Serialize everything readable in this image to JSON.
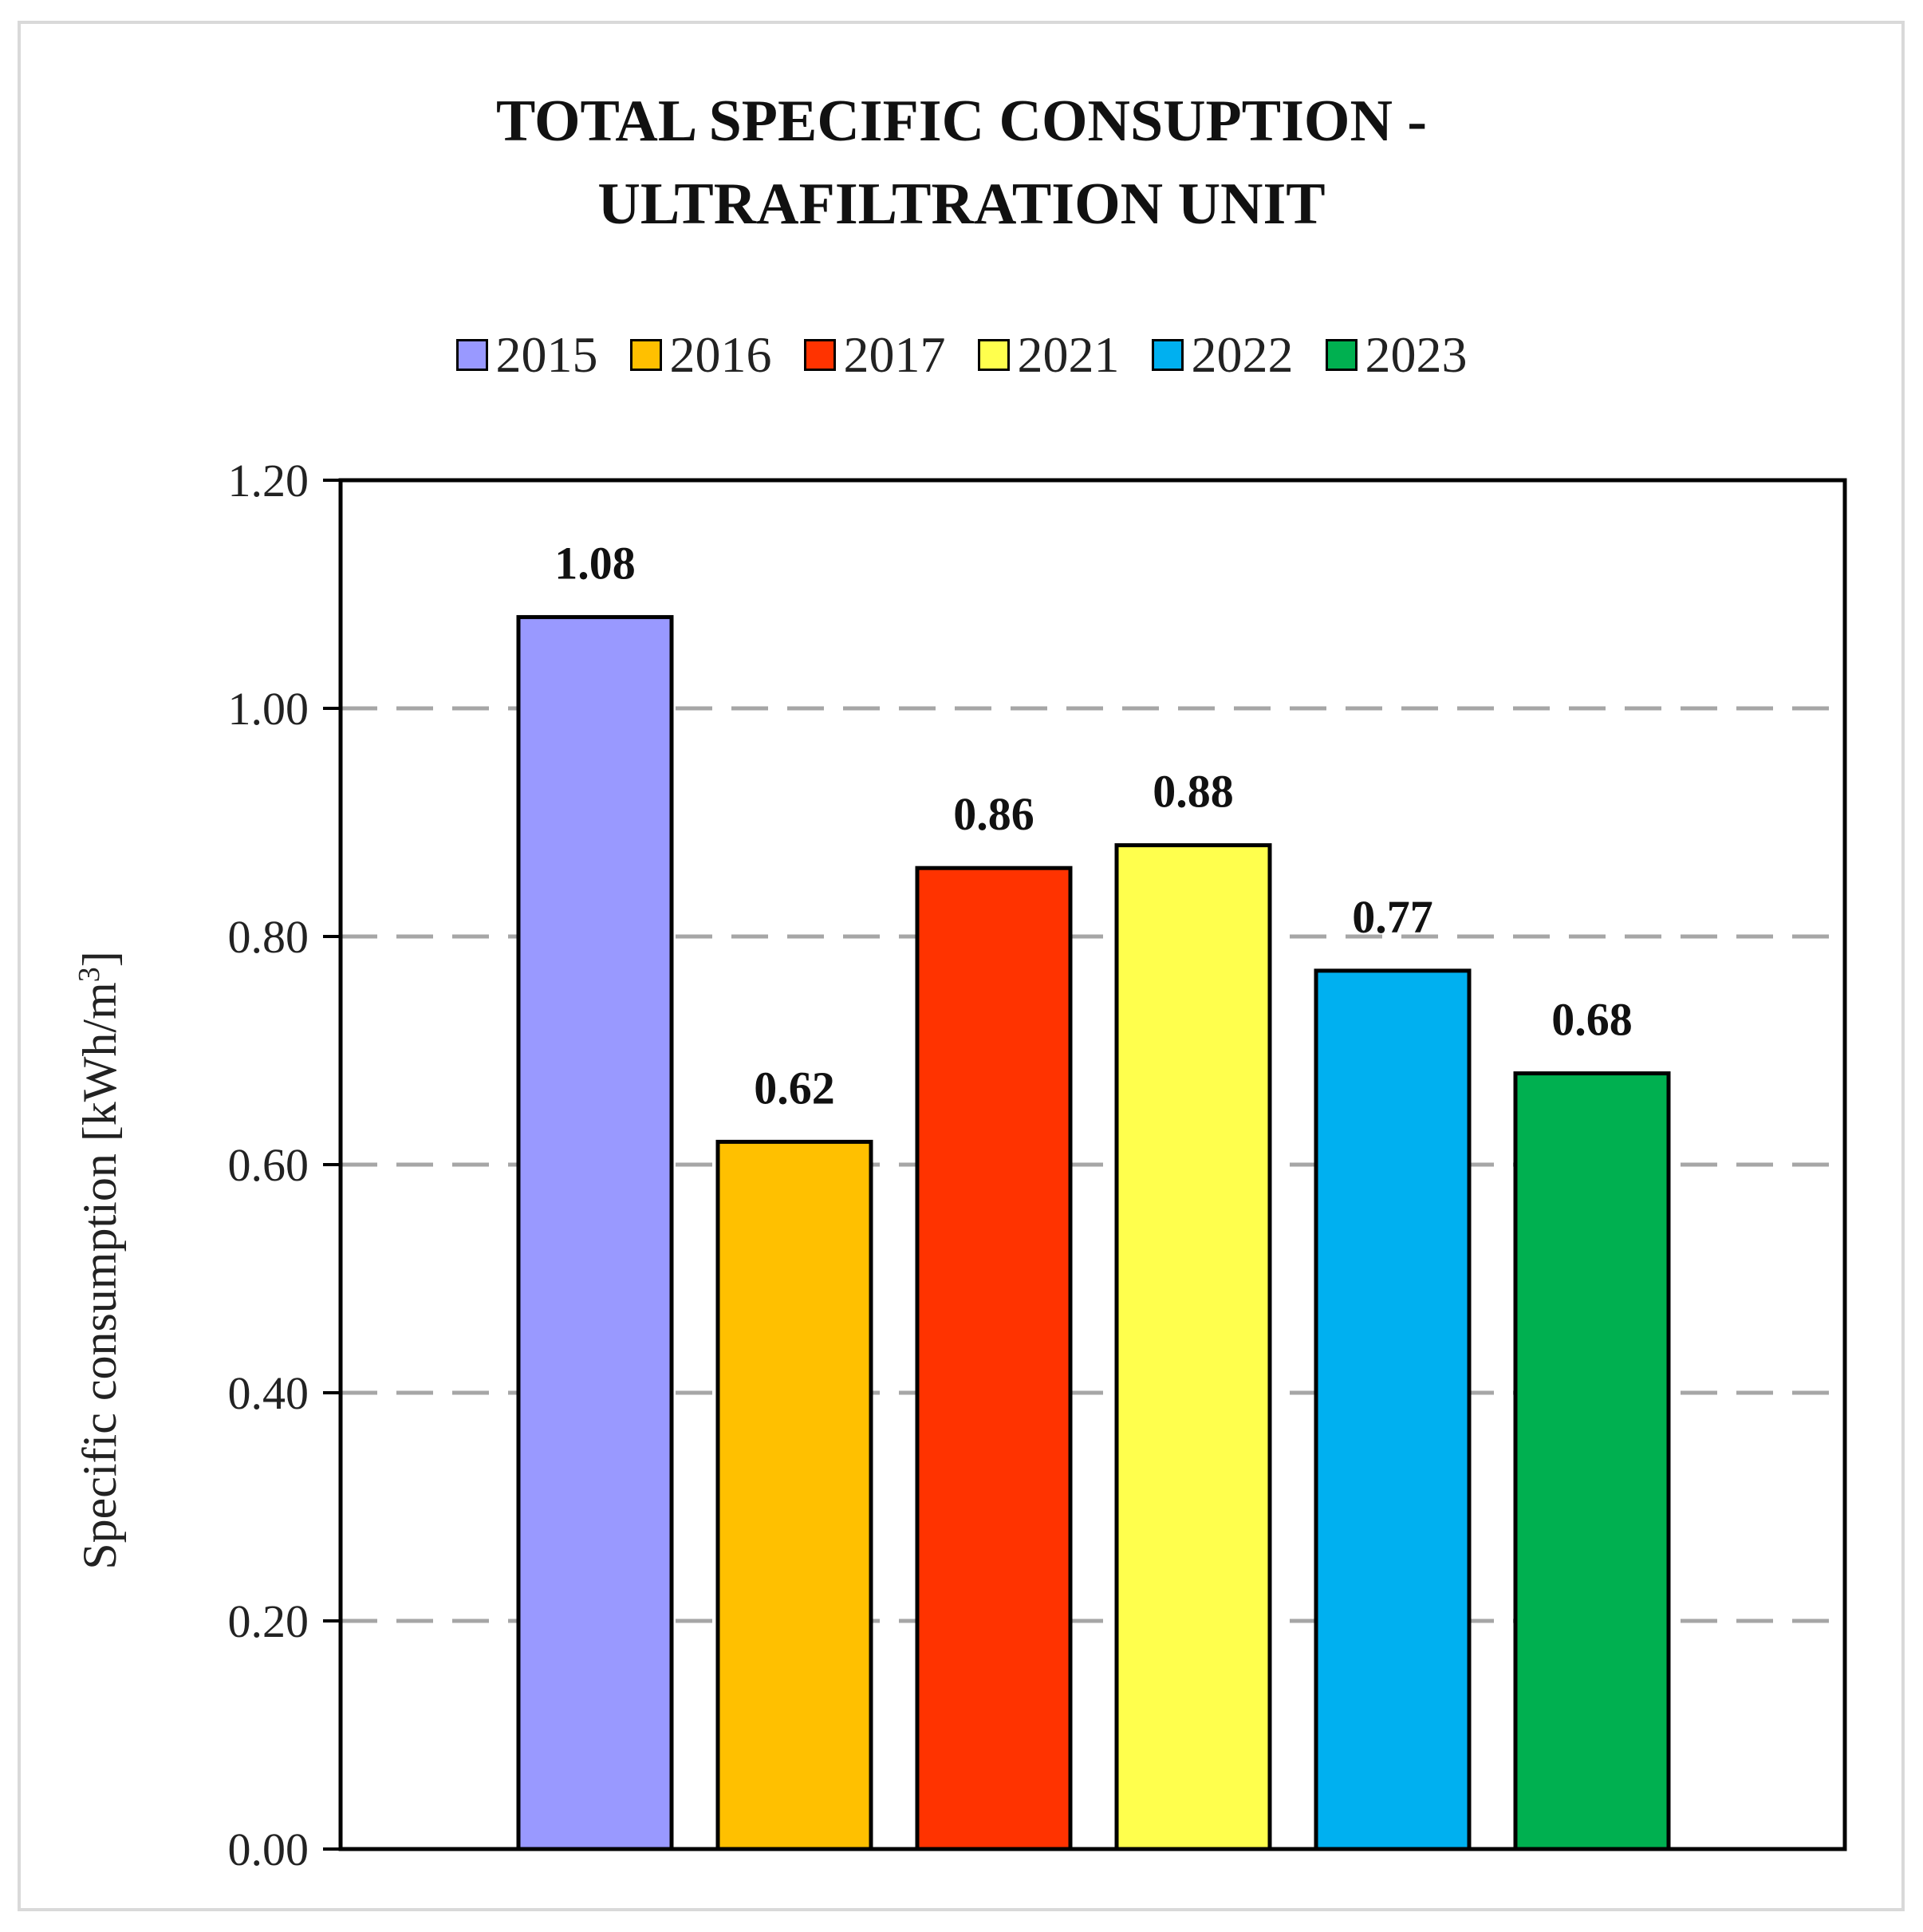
{
  "chart_data": {
    "type": "bar",
    "title_lines": [
      "TOTAL SPECIFIC CONSUPTION -",
      "ULTRAFILTRATION UNIT"
    ],
    "categories": [
      "2015",
      "2016",
      "2017",
      "2021",
      "2022",
      "2023"
    ],
    "values": [
      1.08,
      0.62,
      0.86,
      0.88,
      0.77,
      0.68
    ],
    "value_labels": [
      "1.08",
      "0.62",
      "0.86",
      "0.88",
      "0.77",
      "0.68"
    ],
    "colors": [
      "#9999ff",
      "#ffc000",
      "#ff3300",
      "#ffff4d",
      "#00b0f0",
      "#00b050"
    ],
    "ylabel_main": "Specific consumption [kWh/m",
    "ylabel_sup": "3",
    "ylabel_end": "]",
    "ylim": [
      0,
      1.2
    ],
    "yticks": [
      0,
      0.2,
      0.4,
      0.6,
      0.8,
      1.0,
      1.2
    ],
    "ytick_labels": [
      "0.00",
      "0.20",
      "0.40",
      "0.60",
      "0.80",
      "1.00",
      "1.20"
    ],
    "grid": "dashed horizontal",
    "legend_position": "top"
  }
}
